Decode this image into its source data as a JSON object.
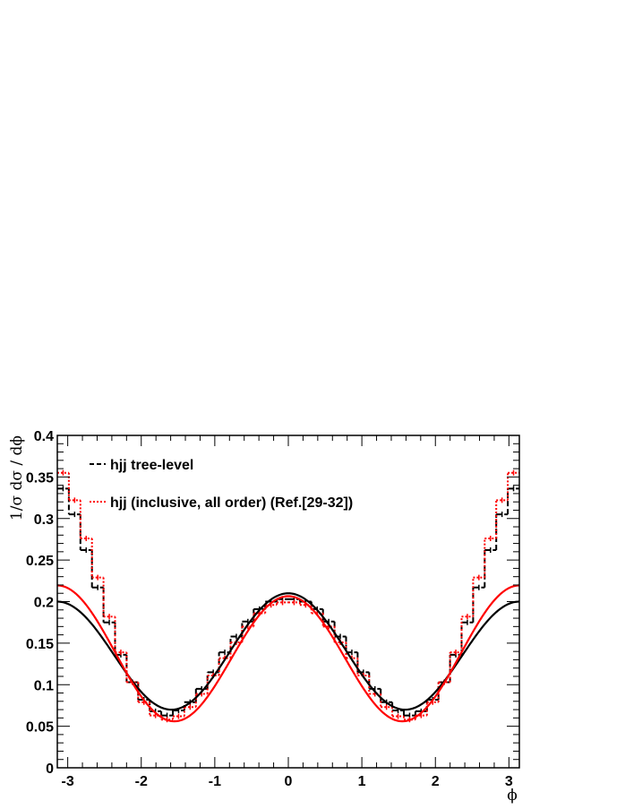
{
  "chart_data": {
    "type": "line",
    "title": "",
    "xlabel": "ϕ",
    "ylabel": "1/σ dσ / dϕ",
    "xlim": [
      -3.1416,
      3.1416
    ],
    "ylim": [
      0,
      0.4
    ],
    "x_ticks": [
      -3,
      -2,
      -1,
      0,
      1,
      2,
      3
    ],
    "x_tick_labels": [
      "-3",
      "-2",
      "-1",
      "0",
      "1",
      "2",
      "3"
    ],
    "y_ticks": [
      0,
      0.05,
      0.1,
      0.15,
      0.2,
      0.25,
      0.3,
      0.35,
      0.4
    ],
    "y_tick_labels": [
      "0",
      "0.05",
      "0.1",
      "0.15",
      "0.2",
      "0.25",
      "0.3",
      "0.35",
      "0.4"
    ],
    "grid": false,
    "legend_position": "top-left",
    "legend": [
      {
        "label": "hjj tree-level",
        "color": "#000000",
        "style": "dashed"
      },
      {
        "label": "hjj (inclusive, all order) (Ref.[29-32])",
        "color": "#ff0000",
        "style": "dotted"
      }
    ],
    "bins": {
      "n": 40,
      "min": -3.1416,
      "max": 3.1416
    },
    "series": [
      {
        "name": "hjj tree-level",
        "kind": "histogram",
        "color": "#000000",
        "values": [
          0.336,
          0.305,
          0.262,
          0.217,
          0.175,
          0.136,
          0.103,
          0.082,
          0.068,
          0.063,
          0.069,
          0.079,
          0.095,
          0.115,
          0.139,
          0.158,
          0.176,
          0.191,
          0.2,
          0.203,
          0.203,
          0.2,
          0.191,
          0.176,
          0.158,
          0.139,
          0.115,
          0.095,
          0.079,
          0.069,
          0.063,
          0.068,
          0.082,
          0.103,
          0.136,
          0.175,
          0.217,
          0.262,
          0.305,
          0.336
        ]
      },
      {
        "name": "hjj (inclusive, all order) (Ref.[29-32])",
        "kind": "histogram",
        "color": "#ff0000",
        "values": [
          0.355,
          0.322,
          0.276,
          0.229,
          0.182,
          0.139,
          0.103,
          0.079,
          0.063,
          0.058,
          0.062,
          0.073,
          0.089,
          0.111,
          0.132,
          0.151,
          0.17,
          0.186,
          0.196,
          0.199,
          0.199,
          0.196,
          0.186,
          0.17,
          0.151,
          0.132,
          0.111,
          0.089,
          0.073,
          0.062,
          0.058,
          0.063,
          0.079,
          0.103,
          0.139,
          0.182,
          0.229,
          0.276,
          0.322,
          0.355
        ]
      },
      {
        "name": "",
        "kind": "fit",
        "color": "#000000",
        "a": 0.1375,
        "b": 0.0675,
        "c": 0.005
      },
      {
        "name": "",
        "kind": "fit",
        "color": "#ff0000",
        "a": 0.1345,
        "b": 0.0785,
        "c": -0.0065
      }
    ]
  }
}
